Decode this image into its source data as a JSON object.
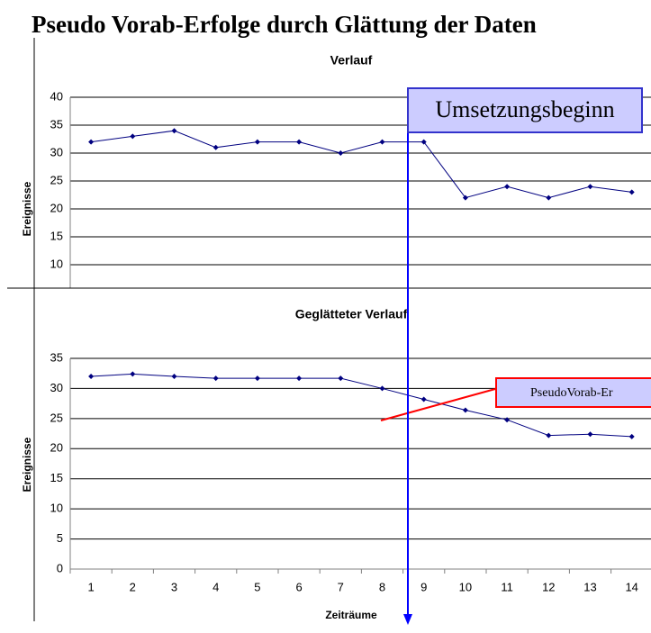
{
  "title": "Pseudo Vorab-Erfolge durch Glättung der Daten",
  "annotations": [
    "Umsetzungsbeginn",
    "PseudoVorab-Er"
  ],
  "chart_data": [
    {
      "type": "line",
      "title": "Verlauf",
      "ylabel": "Ereignisse",
      "categories": [
        "1",
        "2",
        "3",
        "4",
        "5",
        "6",
        "7",
        "8",
        "9",
        "10",
        "11",
        "12",
        "13",
        "14"
      ],
      "series": [
        {
          "name": "Verlauf",
          "color": "#000080",
          "values": [
            32,
            33,
            34,
            31,
            32,
            32,
            30,
            32,
            32,
            22,
            24,
            22,
            24,
            23
          ]
        }
      ],
      "ylim": [
        0,
        40
      ],
      "yticks": [
        10,
        15,
        20,
        25,
        30,
        35,
        40
      ],
      "grid": true
    },
    {
      "type": "line",
      "title": "Geglätteter Verlauf",
      "ylabel": "Ereignisse",
      "xlabel": "Zeiträume",
      "categories": [
        "1",
        "2",
        "3",
        "4",
        "5",
        "6",
        "7",
        "8",
        "9",
        "10",
        "11",
        "12",
        "13",
        "14"
      ],
      "series": [
        {
          "name": "Geglätteter Verlauf",
          "color": "#000080",
          "values": [
            32,
            32.4,
            32,
            31.7,
            31.7,
            31.7,
            31.7,
            30,
            28.2,
            26.4,
            24.8,
            22.2,
            22.4,
            22
          ]
        }
      ],
      "ylim": [
        0,
        35
      ],
      "yticks": [
        0,
        5,
        10,
        15,
        20,
        25,
        30,
        35
      ],
      "grid": true
    }
  ]
}
